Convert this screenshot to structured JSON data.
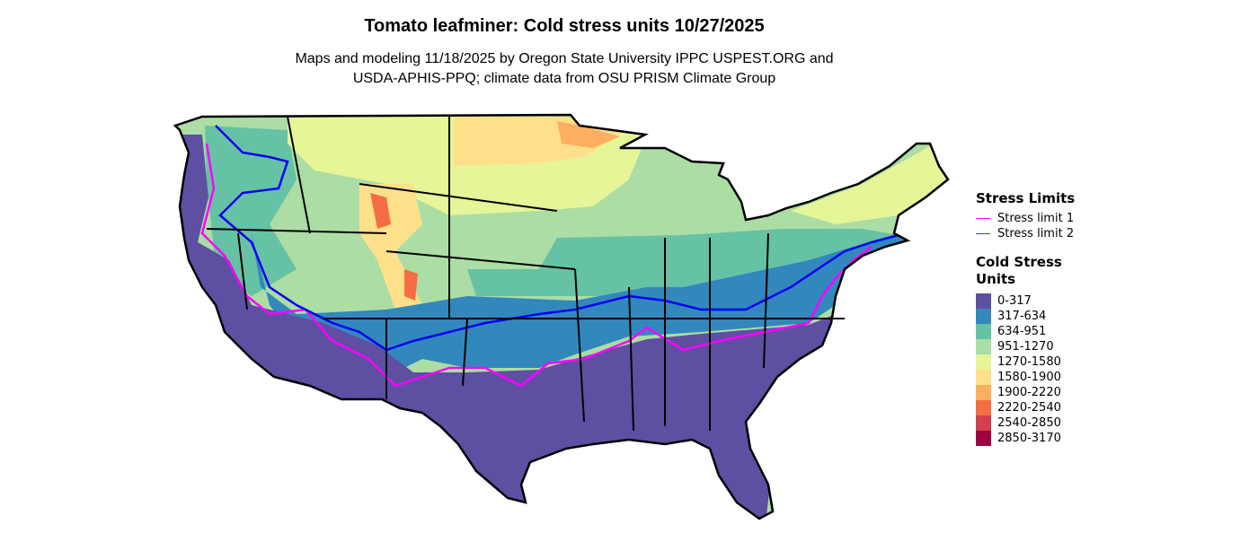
{
  "title": "Tomato leafminer: Cold stress units 10/27/2025",
  "subtitle_line1": "Maps and modeling 11/18/2025 by Oregon State University IPPC USPEST.ORG and",
  "subtitle_line2": "USDA-APHIS-PPQ; climate data from OSU PRISM Climate Group",
  "stress_legend": {
    "title": "Stress Limits",
    "items": [
      {
        "label": "Stress limit 1",
        "color": "#FF00FF"
      },
      {
        "label": "Stress limit 2",
        "color": "#0000EE"
      }
    ]
  },
  "csu_legend": {
    "title_line1": "Cold Stress",
    "title_line2": "Units",
    "items": [
      {
        "label": "0-317",
        "color": "#5E4FA2"
      },
      {
        "label": "317-634",
        "color": "#3288BD"
      },
      {
        "label": "634-951",
        "color": "#66C2A5"
      },
      {
        "label": "951-1270",
        "color": "#ABDDA4"
      },
      {
        "label": "1270-1580",
        "color": "#E6F598"
      },
      {
        "label": "1580-1900",
        "color": "#FEE08B"
      },
      {
        "label": "1900-2220",
        "color": "#FDAE61"
      },
      {
        "label": "2220-2540",
        "color": "#F46D43"
      },
      {
        "label": "2540-2850",
        "color": "#D53E4F"
      },
      {
        "label": "2850-3170",
        "color": "#9E0142"
      }
    ]
  }
}
